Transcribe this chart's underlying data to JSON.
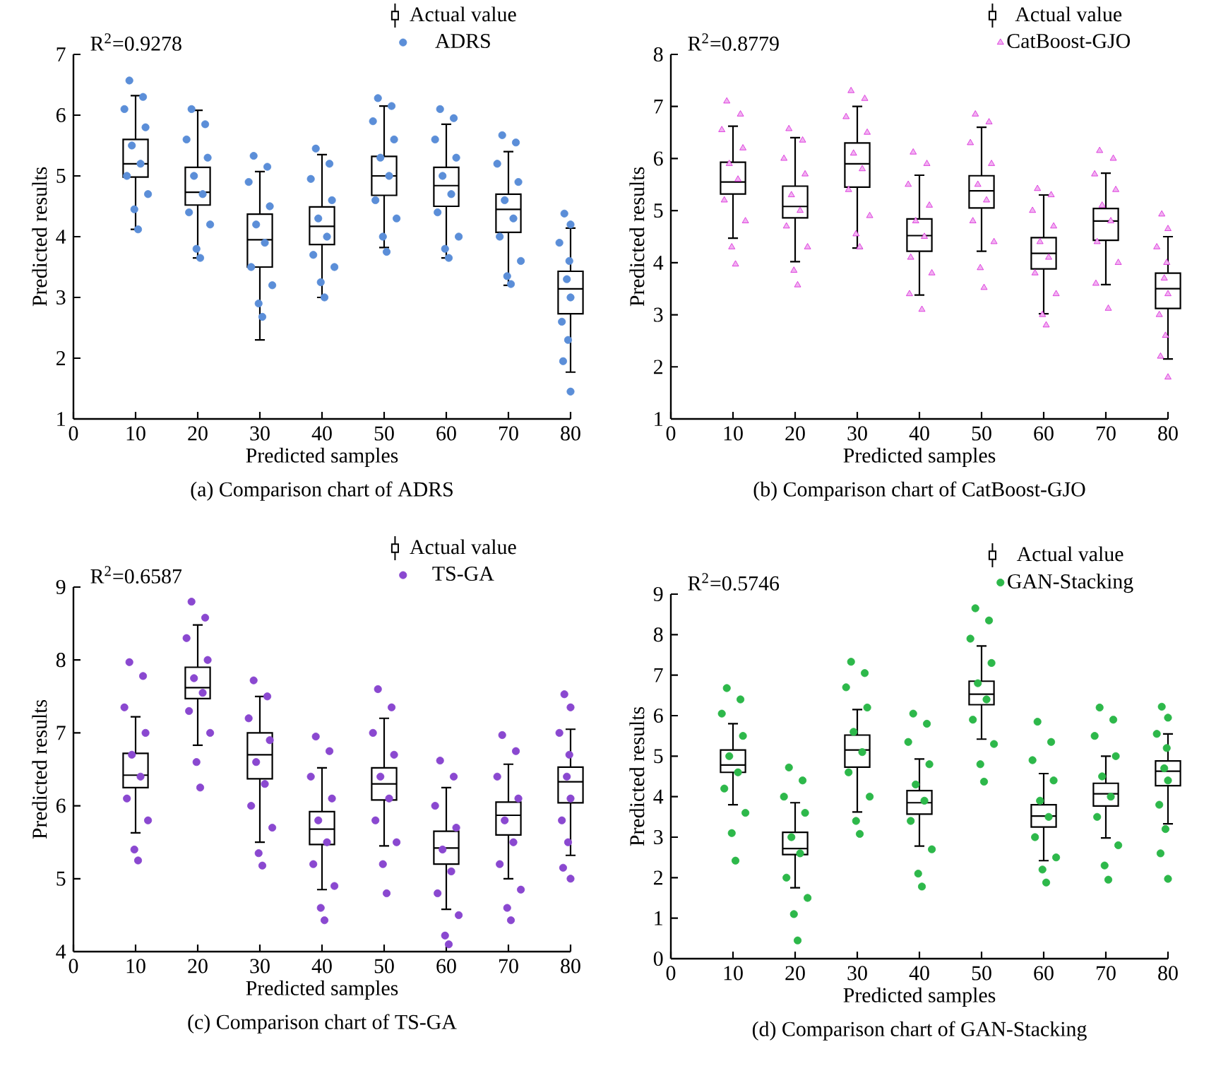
{
  "chart_data": [
    {
      "type": "box",
      "title": "(a) Comparison chart of ADRS",
      "xlabel": "Predicted samples",
      "ylabel": "Predicted results",
      "annotations": [
        "R$^{2}$=0.9278"
      ],
      "xlim": [
        0,
        80
      ],
      "xticks": [
        0,
        10,
        20,
        30,
        40,
        50,
        60,
        70,
        80
      ],
      "ylim": [
        1,
        7
      ],
      "yticks": [
        1,
        2,
        3,
        4,
        5,
        6,
        7
      ],
      "legend": "top right",
      "series": [
        {
          "type": "box",
          "name": "Actual value",
          "color": "#000000",
          "x": [
            10,
            20,
            30,
            40,
            50,
            60,
            70,
            80
          ],
          "boxes": [
            {
              "low": 4.12,
              "q1": 4.98,
              "median": 5.2,
              "q3": 5.6,
              "high": 6.32
            },
            {
              "low": 3.65,
              "q1": 4.52,
              "median": 4.73,
              "q3": 5.14,
              "high": 6.08
            },
            {
              "low": 2.3,
              "q1": 3.5,
              "median": 3.95,
              "q3": 4.37,
              "high": 5.07
            },
            {
              "low": 3.0,
              "q1": 3.87,
              "median": 4.17,
              "q3": 4.49,
              "high": 5.35
            },
            {
              "low": 3.82,
              "q1": 4.68,
              "median": 5.0,
              "q3": 5.32,
              "high": 6.15
            },
            {
              "low": 3.65,
              "q1": 4.5,
              "median": 4.84,
              "q3": 5.14,
              "high": 5.85
            },
            {
              "low": 3.2,
              "q1": 4.07,
              "median": 4.45,
              "q3": 4.7,
              "high": 5.4
            },
            {
              "low": 1.77,
              "q1": 2.73,
              "median": 3.14,
              "q3": 3.43,
              "high": 4.14
            }
          ]
        },
        {
          "type": "scatter",
          "name": "ADRS",
          "color": "#5b8ed8",
          "marker": "circle",
          "x": [
            9,
            11.2,
            8.2,
            11.6,
            9.4,
            10.8,
            8.6,
            12,
            9.8,
            10.4,
            19,
            21.2,
            18.2,
            21.6,
            19.4,
            20.8,
            18.6,
            22,
            19.8,
            20.4,
            29,
            31.2,
            28.2,
            31.6,
            29.4,
            30.8,
            28.6,
            32,
            29.8,
            30.4,
            39,
            41.2,
            38.2,
            41.6,
            39.4,
            40.8,
            38.6,
            42,
            39.8,
            40.4,
            49,
            51.2,
            48.2,
            51.6,
            49.4,
            50.8,
            48.6,
            52,
            49.8,
            50.4,
            59,
            61.2,
            58.2,
            61.6,
            59.4,
            60.8,
            58.6,
            62,
            59.8,
            60.4,
            69,
            71.2,
            68.2,
            71.6,
            69.4,
            70.8,
            68.6,
            72,
            69.8,
            70.4,
            79,
            80,
            78.2,
            79.8,
            79.4,
            80,
            78.6,
            79.6,
            78.8,
            80
          ],
          "values": [
            6.57,
            6.3,
            6.1,
            5.8,
            5.5,
            5.2,
            5.0,
            4.7,
            4.45,
            4.12,
            6.1,
            5.85,
            5.6,
            5.3,
            5.0,
            4.7,
            4.4,
            4.2,
            3.8,
            3.65,
            5.33,
            5.15,
            4.9,
            4.5,
            4.2,
            3.9,
            3.5,
            3.2,
            2.9,
            2.68,
            5.45,
            5.2,
            4.95,
            4.6,
            4.3,
            4.0,
            3.7,
            3.5,
            3.25,
            3.0,
            6.28,
            6.15,
            5.9,
            5.6,
            5.3,
            5.0,
            4.6,
            4.3,
            4.0,
            3.75,
            6.1,
            5.95,
            5.6,
            5.3,
            5.0,
            4.7,
            4.4,
            4.0,
            3.8,
            3.65,
            5.67,
            5.55,
            5.2,
            4.9,
            4.6,
            4.3,
            4.0,
            3.6,
            3.35,
            3.22,
            4.38,
            4.2,
            3.9,
            3.6,
            3.3,
            3.0,
            2.6,
            2.3,
            1.95,
            1.45
          ]
        }
      ]
    },
    {
      "type": "box",
      "title": "(b) Comparison chart of CatBoost-GJO",
      "xlabel": "Predicted samples",
      "ylabel": "Predicted results",
      "annotations": [
        "R$^{2}$=0.8779"
      ],
      "xlim": [
        0,
        80
      ],
      "xticks": [
        0,
        10,
        20,
        30,
        40,
        50,
        60,
        70,
        80
      ],
      "ylim": [
        1,
        8
      ],
      "yticks": [
        1,
        2,
        3,
        4,
        5,
        6,
        7,
        8
      ],
      "legend": "top right",
      "series": [
        {
          "type": "box",
          "name": "Actual value",
          "color": "#000000",
          "x": [
            10,
            20,
            30,
            40,
            50,
            60,
            70,
            80
          ],
          "boxes": [
            {
              "low": 4.47,
              "q1": 5.32,
              "median": 5.55,
              "q3": 5.93,
              "high": 6.62
            },
            {
              "low": 4.02,
              "q1": 4.86,
              "median": 5.08,
              "q3": 5.47,
              "high": 6.4
            },
            {
              "low": 4.28,
              "q1": 5.45,
              "median": 5.9,
              "q3": 6.3,
              "high": 7.0
            },
            {
              "low": 3.38,
              "q1": 4.22,
              "median": 4.52,
              "q3": 4.84,
              "high": 5.68
            },
            {
              "low": 4.22,
              "q1": 5.05,
              "median": 5.38,
              "q3": 5.67,
              "high": 6.6
            },
            {
              "low": 3.02,
              "q1": 3.88,
              "median": 4.18,
              "q3": 4.48,
              "high": 5.3
            },
            {
              "low": 3.58,
              "q1": 4.43,
              "median": 4.8,
              "q3": 5.04,
              "high": 5.72
            },
            {
              "low": 2.15,
              "q1": 3.12,
              "median": 3.5,
              "q3": 3.8,
              "high": 4.5
            }
          ]
        },
        {
          "type": "scatter",
          "name": "CatBoost-GJO",
          "color": "#d81fd8",
          "marker": "triangle",
          "x": [
            9,
            11.2,
            8.2,
            11.6,
            9.4,
            10.8,
            8.6,
            12,
            9.8,
            10.4,
            19,
            21.2,
            18.2,
            21.6,
            19.4,
            20.8,
            18.6,
            22,
            19.8,
            20.4,
            29,
            31.2,
            28.2,
            31.6,
            29.4,
            30.8,
            28.6,
            32,
            29.8,
            30.4,
            39,
            41.2,
            38.2,
            41.6,
            39.4,
            40.8,
            38.6,
            42,
            38.4,
            40.4,
            49,
            51.2,
            48.2,
            51.6,
            49.4,
            50.8,
            48.6,
            52,
            49.8,
            50.4,
            59,
            61.2,
            58.2,
            61.6,
            59.4,
            60.8,
            58.6,
            62,
            59.8,
            60.4,
            69,
            71.2,
            68.2,
            71.6,
            69.4,
            70.8,
            68.6,
            72,
            68.4,
            70.4,
            79,
            80,
            78.2,
            79.8,
            79.4,
            80,
            78.6,
            79.6,
            78.8,
            80
          ],
          "values": [
            7.1,
            6.85,
            6.55,
            6.2,
            5.9,
            5.6,
            5.2,
            4.8,
            4.3,
            3.97,
            6.57,
            6.35,
            6.0,
            5.7,
            5.3,
            5.0,
            4.7,
            4.3,
            3.85,
            3.57,
            7.3,
            7.15,
            6.8,
            6.5,
            6.1,
            5.8,
            5.4,
            4.9,
            4.55,
            4.3,
            6.12,
            5.9,
            5.5,
            5.1,
            4.8,
            4.5,
            4.1,
            3.8,
            3.4,
            3.1,
            6.85,
            6.7,
            6.3,
            5.9,
            5.5,
            5.2,
            4.8,
            4.4,
            3.9,
            3.52,
            5.42,
            5.3,
            5.0,
            4.7,
            4.4,
            4.1,
            3.8,
            3.4,
            3.0,
            2.8,
            6.15,
            6.0,
            5.7,
            5.4,
            5.1,
            4.8,
            4.4,
            4.0,
            3.6,
            3.12,
            4.93,
            4.65,
            4.3,
            4.0,
            3.7,
            3.4,
            3.0,
            2.6,
            2.2,
            1.8
          ]
        }
      ]
    },
    {
      "type": "box",
      "title": "(c) Comparison chart of TS-GA",
      "xlabel": "Predicted samples",
      "ylabel": "Predicted results",
      "annotations": [
        "R$^{2}$=0.6587"
      ],
      "xlim": [
        0,
        80
      ],
      "xticks": [
        0,
        10,
        20,
        30,
        40,
        50,
        60,
        70,
        80
      ],
      "ylim": [
        4,
        9
      ],
      "yticks": [
        4,
        5,
        6,
        7,
        8,
        9
      ],
      "legend": "top right",
      "series": [
        {
          "type": "box",
          "name": "Actual value",
          "color": "#000000",
          "x": [
            10,
            20,
            30,
            40,
            50,
            60,
            70,
            80
          ],
          "boxes": [
            {
              "low": 5.63,
              "q1": 6.25,
              "median": 6.42,
              "q3": 6.72,
              "high": 7.22
            },
            {
              "low": 6.83,
              "q1": 7.47,
              "median": 7.62,
              "q3": 7.9,
              "high": 8.48
            },
            {
              "low": 5.5,
              "q1": 6.37,
              "median": 6.7,
              "q3": 7.0,
              "high": 7.5
            },
            {
              "low": 4.85,
              "q1": 5.47,
              "median": 5.68,
              "q3": 5.92,
              "high": 6.52
            },
            {
              "low": 5.45,
              "q1": 6.08,
              "median": 6.3,
              "q3": 6.52,
              "high": 7.2
            },
            {
              "low": 4.58,
              "q1": 5.2,
              "median": 5.42,
              "q3": 5.65,
              "high": 6.25
            },
            {
              "low": 5.0,
              "q1": 5.6,
              "median": 5.87,
              "q3": 6.05,
              "high": 6.57
            },
            {
              "low": 5.32,
              "q1": 6.04,
              "median": 6.33,
              "q3": 6.53,
              "high": 7.05
            }
          ]
        },
        {
          "type": "scatter",
          "name": "TS-GA",
          "color": "#8a48d0",
          "marker": "circle",
          "x": [
            9,
            11.2,
            8.2,
            11.6,
            9.4,
            10.8,
            8.6,
            12,
            9.8,
            10.4,
            19,
            21.2,
            18.2,
            21.6,
            19.4,
            20.8,
            18.6,
            22,
            19.8,
            20.4,
            29,
            31.2,
            28.2,
            31.6,
            29.4,
            30.8,
            28.6,
            32,
            29.8,
            30.4,
            39,
            41.2,
            38.2,
            41.6,
            39.4,
            40.8,
            38.6,
            42,
            39.8,
            40.4,
            49,
            51.2,
            48.2,
            51.6,
            49.4,
            50.8,
            48.6,
            52,
            49.8,
            50.4,
            59,
            61.2,
            58.2,
            61.6,
            59.4,
            60.8,
            58.6,
            62,
            59.8,
            60.4,
            69,
            71.2,
            68.2,
            71.6,
            69.4,
            70.8,
            68.6,
            72,
            69.8,
            70.4,
            79,
            80,
            78.2,
            79.8,
            79.4,
            80,
            78.6,
            79.6,
            78.8,
            80
          ],
          "values": [
            7.97,
            7.78,
            7.35,
            7.0,
            6.7,
            6.4,
            6.1,
            5.8,
            5.4,
            5.25,
            8.8,
            8.58,
            8.3,
            8.0,
            7.75,
            7.55,
            7.3,
            7.0,
            6.6,
            6.25,
            7.72,
            7.5,
            7.2,
            6.9,
            6.6,
            6.3,
            6.0,
            5.7,
            5.35,
            5.18,
            6.95,
            6.75,
            6.4,
            6.1,
            5.8,
            5.5,
            5.2,
            4.9,
            4.6,
            4.43,
            7.6,
            7.35,
            7.0,
            6.7,
            6.4,
            6.1,
            5.8,
            5.5,
            5.2,
            4.8,
            6.62,
            6.4,
            6.0,
            5.7,
            5.4,
            5.1,
            4.8,
            4.5,
            4.22,
            4.1,
            6.97,
            6.75,
            6.4,
            6.1,
            5.8,
            5.5,
            5.2,
            4.85,
            4.6,
            4.43,
            7.53,
            7.35,
            7.0,
            6.7,
            6.4,
            6.1,
            5.8,
            5.5,
            5.15,
            5.0
          ]
        }
      ]
    },
    {
      "type": "box",
      "title": "(d) Comparison chart of GAN-Stacking",
      "xlabel": "Predicted samples",
      "ylabel": "Predicted results",
      "annotations": [
        "R$^{2}$=0.5746"
      ],
      "xlim": [
        0,
        80
      ],
      "xticks": [
        0,
        10,
        20,
        30,
        40,
        50,
        60,
        70,
        80
      ],
      "ylim": [
        0,
        9
      ],
      "yticks": [
        0,
        1,
        2,
        3,
        4,
        5,
        6,
        7,
        8,
        9
      ],
      "legend": "top right",
      "series": [
        {
          "type": "box",
          "name": "Actual value",
          "color": "#000000",
          "x": [
            10,
            20,
            30,
            40,
            50,
            60,
            70,
            80
          ],
          "boxes": [
            {
              "low": 3.8,
              "q1": 4.6,
              "median": 4.78,
              "q3": 5.15,
              "high": 5.8
            },
            {
              "low": 1.75,
              "q1": 2.57,
              "median": 2.72,
              "q3": 3.12,
              "high": 3.85
            },
            {
              "low": 3.62,
              "q1": 4.73,
              "median": 5.15,
              "q3": 5.52,
              "high": 6.15
            },
            {
              "low": 2.78,
              "q1": 3.57,
              "median": 3.85,
              "q3": 4.15,
              "high": 4.93
            },
            {
              "low": 5.42,
              "q1": 6.27,
              "median": 6.53,
              "q3": 6.85,
              "high": 7.72
            },
            {
              "low": 2.42,
              "q1": 3.25,
              "median": 3.52,
              "q3": 3.8,
              "high": 4.57
            },
            {
              "low": 2.98,
              "q1": 3.77,
              "median": 4.07,
              "q3": 4.33,
              "high": 5.0
            },
            {
              "low": 3.33,
              "q1": 4.27,
              "median": 4.63,
              "q3": 4.88,
              "high": 5.55
            }
          ]
        },
        {
          "type": "scatter",
          "name": "GAN-Stacking",
          "color": "#2db84a",
          "marker": "circle",
          "x": [
            9,
            11.2,
            8.2,
            11.6,
            9.4,
            10.8,
            8.6,
            12,
            9.8,
            10.4,
            19,
            21.2,
            18.2,
            21.6,
            19.4,
            20.8,
            18.6,
            22,
            19.8,
            20.4,
            29,
            31.2,
            28.2,
            31.6,
            29.4,
            30.8,
            28.6,
            32,
            29.8,
            30.4,
            39,
            41.2,
            38.2,
            41.6,
            39.4,
            40.8,
            38.6,
            42,
            39.8,
            40.4,
            49,
            51.2,
            48.2,
            51.6,
            49.4,
            50.8,
            48.6,
            52,
            49.8,
            50.4,
            59,
            61.2,
            58.2,
            61.6,
            59.4,
            60.8,
            58.6,
            62,
            59.8,
            60.4,
            69,
            71.2,
            68.2,
            71.6,
            69.4,
            70.8,
            68.6,
            72,
            69.8,
            70.4,
            79,
            80,
            78.2,
            79.8,
            79.4,
            80,
            78.6,
            79.6,
            78.8,
            80
          ],
          "values": [
            6.68,
            6.4,
            6.05,
            5.5,
            5.0,
            4.6,
            4.2,
            3.6,
            3.1,
            2.42,
            4.72,
            4.4,
            4.0,
            3.6,
            3.0,
            2.6,
            2.0,
            1.5,
            1.1,
            0.45,
            7.33,
            7.05,
            6.7,
            6.2,
            5.6,
            5.1,
            4.6,
            4.0,
            3.4,
            3.08,
            6.05,
            5.8,
            5.35,
            4.8,
            4.3,
            3.9,
            3.4,
            2.7,
            2.1,
            1.78,
            8.65,
            8.35,
            7.9,
            7.3,
            6.8,
            6.4,
            5.9,
            5.3,
            4.8,
            4.37,
            5.85,
            5.35,
            4.9,
            4.4,
            3.9,
            3.5,
            3.0,
            2.5,
            2.2,
            1.88,
            6.2,
            5.9,
            5.5,
            5.0,
            4.5,
            4.0,
            3.5,
            2.8,
            2.3,
            1.95,
            6.22,
            5.95,
            5.55,
            5.2,
            4.7,
            4.4,
            3.8,
            3.2,
            2.6,
            1.97
          ]
        }
      ]
    }
  ]
}
